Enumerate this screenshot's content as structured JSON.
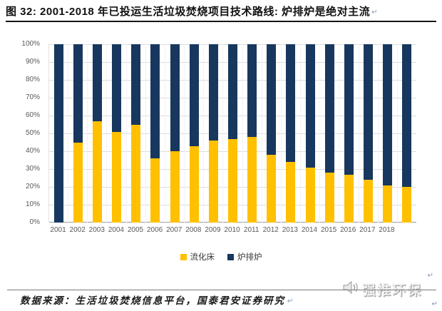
{
  "title": {
    "text": "图 32: 2001-2018 年已投运生活垃圾焚烧项目技术路线: 炉排炉是绝对主流",
    "return_mark": "↵"
  },
  "chart_data": {
    "type": "bar",
    "variant": "100-percent-stacked-column",
    "categories": [
      "2001",
      "2002",
      "2003",
      "2004",
      "2005",
      "2006",
      "2007",
      "2008",
      "2009",
      "2010",
      "2011",
      "2012",
      "2013",
      "2014",
      "2015",
      "2016",
      "2017",
      "2018",
      ""
    ],
    "series": [
      {
        "name": "流化床",
        "color": "#FFC000",
        "values": [
          0,
          45,
          57,
          51,
          55,
          36,
          40,
          43,
          46,
          47,
          48,
          38,
          34,
          31,
          28,
          27,
          24,
          21,
          20
        ]
      },
      {
        "name": "炉排炉",
        "color": "#17375E",
        "values": [
          100,
          55,
          43,
          49,
          45,
          64,
          60,
          57,
          54,
          53,
          52,
          62,
          66,
          69,
          72,
          73,
          76,
          79,
          80
        ]
      }
    ],
    "y_ticks": [
      "100%",
      "90%",
      "80%",
      "70%",
      "60%",
      "50%",
      "40%",
      "30%",
      "20%",
      "10%",
      "0%"
    ],
    "ylim": [
      0,
      100
    ],
    "unit": "%",
    "grid": true,
    "legend_position": "bottom"
  },
  "footer": {
    "source_text": "数据来源：生活垃圾焚烧信息平台，国泰君安证券研究",
    "return_mark": "↵"
  },
  "watermark": {
    "text": "强推环保",
    "icon": "speaker-icon",
    "return_mark_top": "↵",
    "return_mark_bottom": "↵"
  },
  "colors": {
    "fluidized_bed": "#FFC000",
    "grate_furnace": "#17375E",
    "gridline": "#DCDCDC",
    "axis_text": "#595959"
  }
}
